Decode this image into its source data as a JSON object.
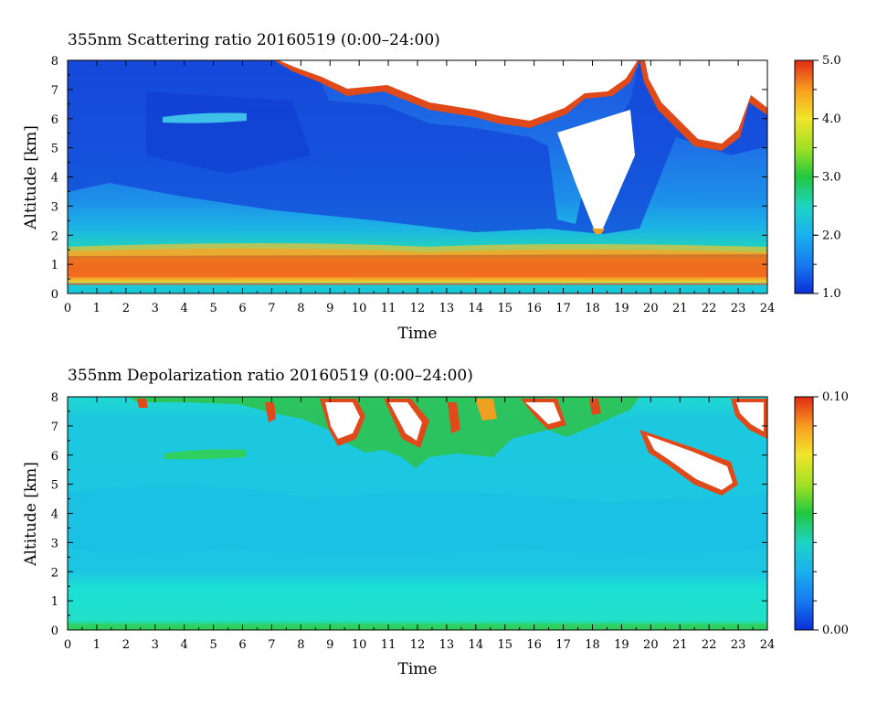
{
  "chart_data": [
    {
      "type": "heatmap",
      "title": "355nm Scattering ratio  20160519 (0:00–24:00)",
      "xlabel": "Time",
      "ylabel": "Altitude [km]",
      "xlim": [
        0,
        24
      ],
      "ylim": [
        0,
        8
      ],
      "x_ticks": [
        "0",
        "1",
        "2",
        "3",
        "4",
        "5",
        "6",
        "7",
        "8",
        "9",
        "10",
        "11",
        "12",
        "13",
        "14",
        "15",
        "16",
        "17",
        "18",
        "19",
        "20",
        "21",
        "22",
        "23",
        "24"
      ],
      "y_ticks": [
        "0",
        "1",
        "2",
        "3",
        "4",
        "5",
        "6",
        "7",
        "8"
      ],
      "colorbar": {
        "range": [
          1.0,
          5.0
        ],
        "tick_labels": [
          "5.0",
          "4.0",
          "3.0",
          "2.0",
          "1.0"
        ],
        "colormap": [
          "#0a2fd6",
          "#1878f0",
          "#19b0ee",
          "#1fd3c8",
          "#20c840",
          "#9fe025",
          "#f0e62a",
          "#f8a020",
          "#f05a20",
          "#e02a16"
        ]
      },
      "features": {
        "boundary_layer_km": [
          0.5,
          1.3
        ],
        "clouds_above_km": 5.0,
        "clouds_start_hour": 8.5
      }
    },
    {
      "type": "heatmap",
      "title": "355nm Depolarization ratio  20160519 (0:00–24:00)",
      "xlabel": "Time",
      "ylabel": "Altitude [km]",
      "xlim": [
        0,
        24
      ],
      "ylim": [
        0,
        8
      ],
      "x_ticks": [
        "0",
        "1",
        "2",
        "3",
        "4",
        "5",
        "6",
        "7",
        "8",
        "9",
        "10",
        "11",
        "12",
        "13",
        "14",
        "15",
        "16",
        "17",
        "18",
        "19",
        "20",
        "21",
        "22",
        "23",
        "24"
      ],
      "y_ticks": [
        "0",
        "1",
        "2",
        "3",
        "4",
        "5",
        "6",
        "7",
        "8"
      ],
      "colorbar": {
        "range": [
          0.0,
          0.1
        ],
        "tick_labels": [
          "0.10",
          "0.00"
        ],
        "colormap": [
          "#0a2fd6",
          "#1878f0",
          "#19b0ee",
          "#1fd3c8",
          "#20c840",
          "#9fe025",
          "#f0e62a",
          "#f8a020",
          "#f05a20",
          "#e02a16"
        ]
      },
      "features": {
        "background_level": 0.03,
        "clouds_above_km": 4.8
      }
    }
  ]
}
